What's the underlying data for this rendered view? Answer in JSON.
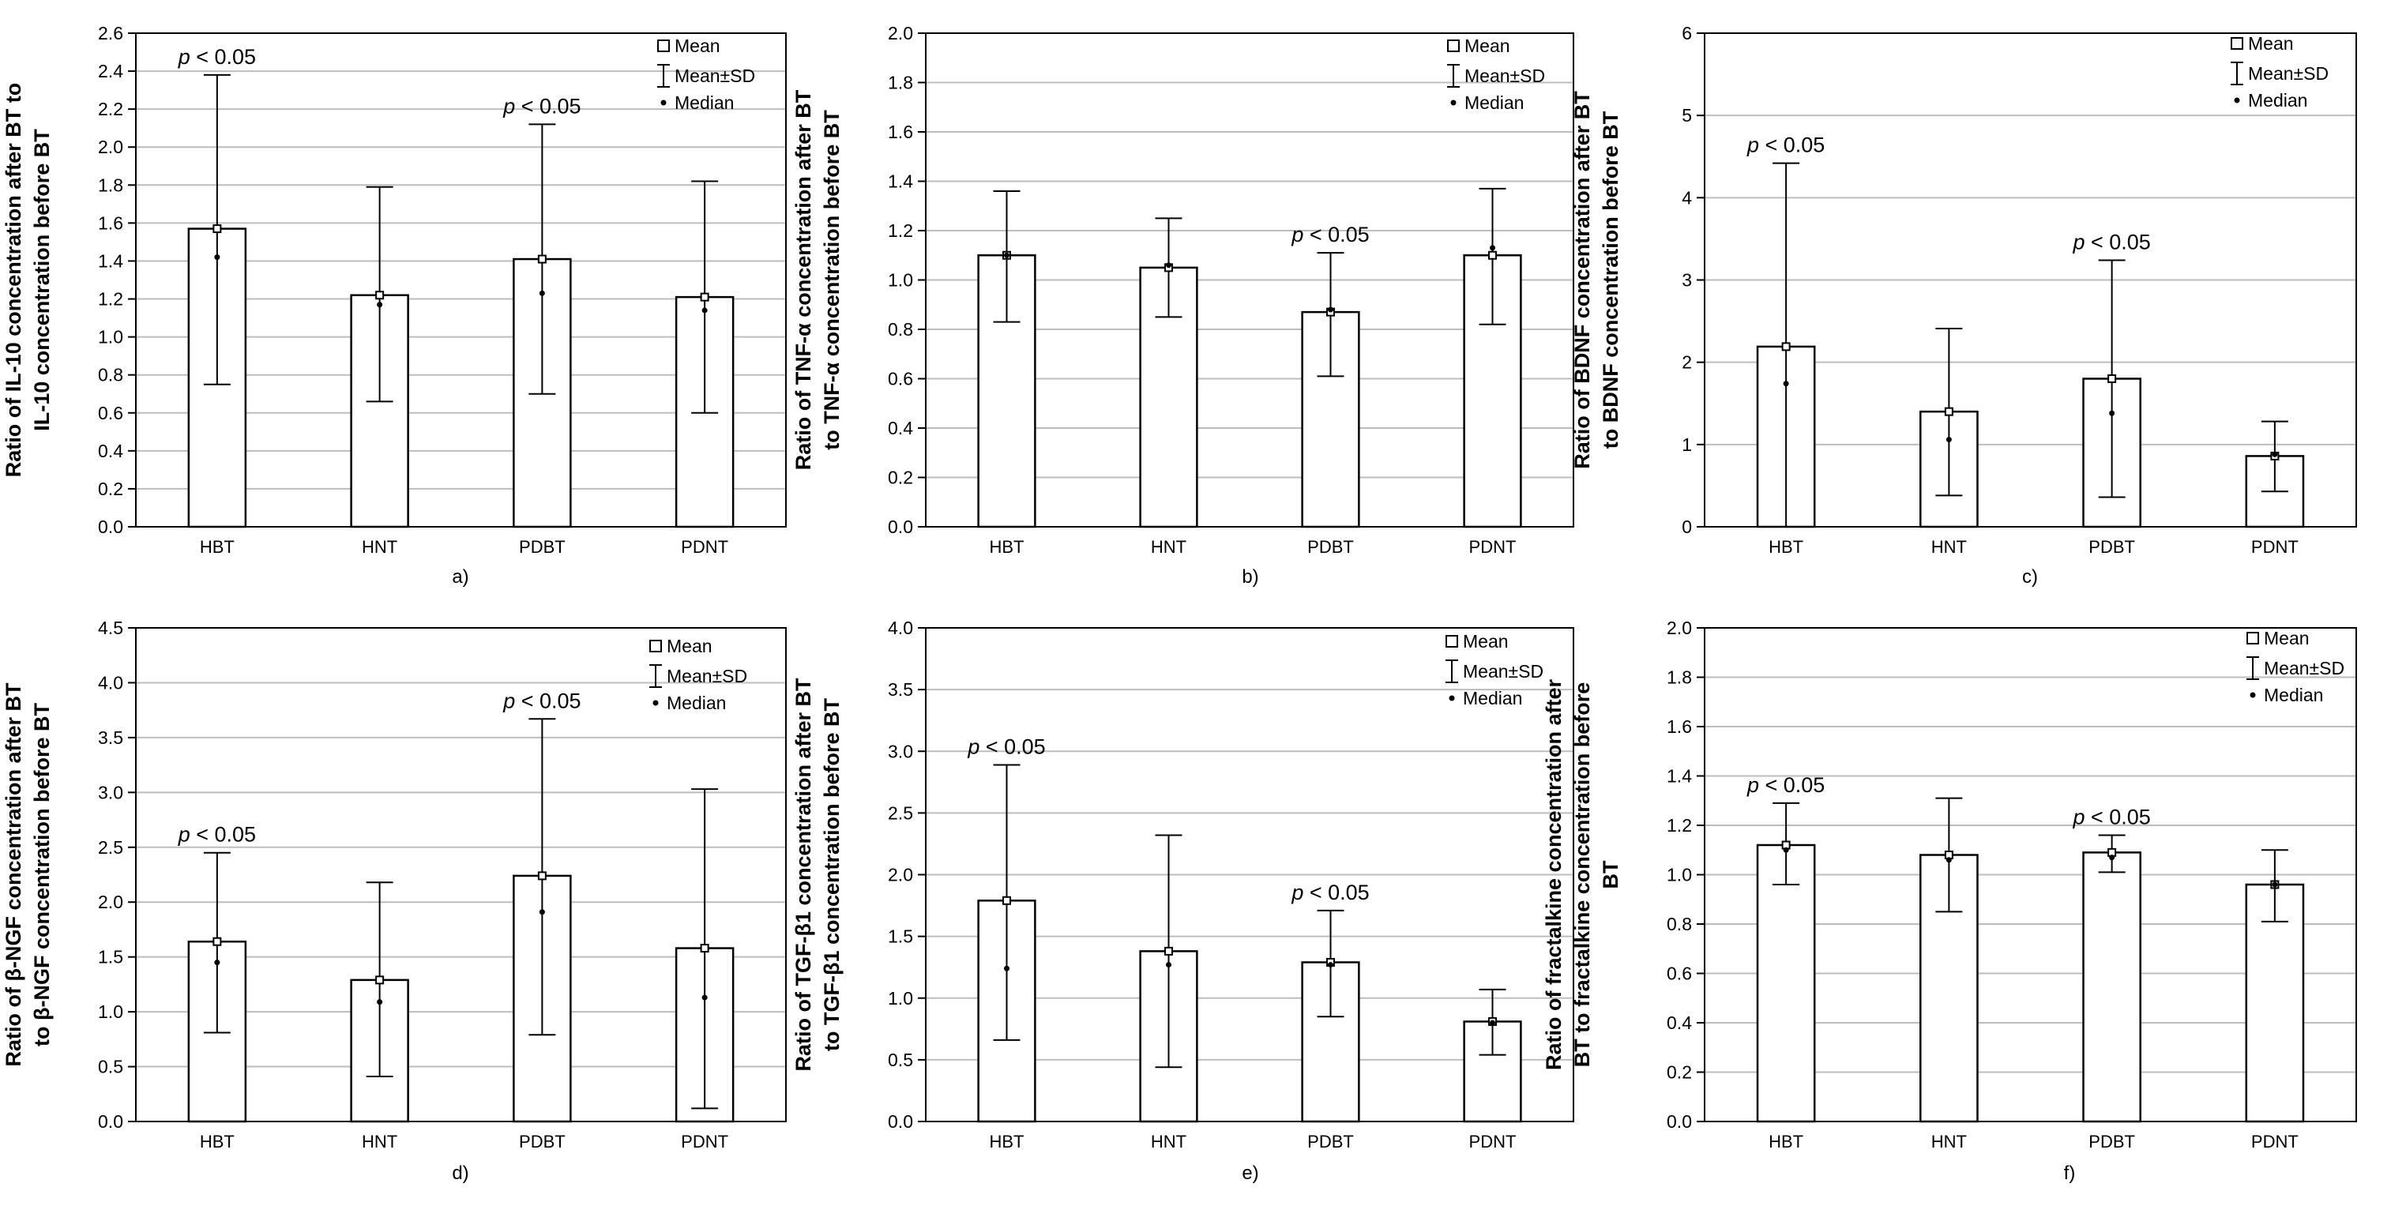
{
  "figure": {
    "categories": [
      "HBT",
      "HNT",
      "PDBT",
      "PDNT"
    ],
    "legend": {
      "mean": "Mean",
      "sd": "Mean±SD",
      "median": "Median"
    },
    "sig_label": "< 0.05",
    "sig_p": "p"
  },
  "chart_data": [
    {
      "panel": "a)",
      "type": "bar",
      "ylabel": [
        "Ratio of IL-10 concentration after BT to",
        "IL-10 concentration before BT"
      ],
      "ylim": [
        0,
        2.6
      ],
      "ystep": 0.2,
      "tick_decimals": 1,
      "categories": [
        "HBT",
        "HNT",
        "PDBT",
        "PDNT"
      ],
      "mean": [
        1.57,
        1.22,
        1.41,
        1.21
      ],
      "sd_low": [
        0.75,
        0.66,
        0.7,
        0.6
      ],
      "sd_high": [
        2.38,
        1.79,
        2.12,
        1.82
      ],
      "median": [
        1.42,
        1.17,
        1.23,
        1.14
      ],
      "significant": [
        true,
        false,
        true,
        false
      ]
    },
    {
      "panel": "b)",
      "type": "bar",
      "ylabel": [
        "Ratio of TNF-α concentration after BT",
        "to TNF-α concentration before BT"
      ],
      "ylim": [
        0,
        2.0
      ],
      "ystep": 0.2,
      "tick_decimals": 1,
      "categories": [
        "HBT",
        "HNT",
        "PDBT",
        "PDNT"
      ],
      "mean": [
        1.1,
        1.05,
        0.87,
        1.1
      ],
      "sd_low": [
        0.83,
        0.85,
        0.61,
        0.82
      ],
      "sd_high": [
        1.36,
        1.25,
        1.11,
        1.37
      ],
      "median": [
        1.1,
        1.06,
        0.88,
        1.13
      ],
      "significant": [
        false,
        false,
        true,
        false
      ]
    },
    {
      "panel": "c)",
      "type": "bar",
      "ylabel": [
        "Ratio of BDNF concentration after BT",
        "to BDNF concentration before BT"
      ],
      "ylim": [
        0,
        6
      ],
      "ystep": 1,
      "tick_decimals": 0,
      "categories": [
        "HBT",
        "HNT",
        "PDBT",
        "PDNT"
      ],
      "mean": [
        2.19,
        1.4,
        1.8,
        0.86
      ],
      "sd_low": [
        0.0,
        0.38,
        0.36,
        0.43
      ],
      "sd_high": [
        4.42,
        2.41,
        3.24,
        1.28
      ],
      "median": [
        1.74,
        1.06,
        1.38,
        0.88
      ],
      "significant": [
        true,
        false,
        true,
        false
      ]
    },
    {
      "panel": "d)",
      "type": "bar",
      "ylabel": [
        "Ratio of β-NGF concentration after BT",
        "to β-NGF concentration before BT"
      ],
      "ylim": [
        0,
        4.5
      ],
      "ystep": 0.5,
      "tick_decimals": 1,
      "categories": [
        "HBT",
        "HNT",
        "PDBT",
        "PDNT"
      ],
      "mean": [
        1.64,
        1.29,
        2.24,
        1.58
      ],
      "sd_low": [
        0.81,
        0.41,
        0.79,
        0.12
      ],
      "sd_high": [
        2.45,
        2.18,
        3.67,
        3.03
      ],
      "median": [
        1.45,
        1.09,
        1.91,
        1.13
      ],
      "significant": [
        true,
        false,
        true,
        false
      ]
    },
    {
      "panel": "e)",
      "type": "bar",
      "ylabel": [
        "Ratio of TGF-β1 concentration after BT",
        "to TGF-β1 concentration before BT"
      ],
      "ylim": [
        0,
        4.0
      ],
      "ystep": 0.5,
      "tick_decimals": 1,
      "categories": [
        "HBT",
        "HNT",
        "PDBT",
        "PDNT"
      ],
      "mean": [
        1.79,
        1.38,
        1.29,
        0.81
      ],
      "sd_low": [
        0.66,
        0.44,
        0.85,
        0.54
      ],
      "sd_high": [
        2.89,
        2.32,
        1.71,
        1.07
      ],
      "median": [
        1.24,
        1.27,
        1.27,
        0.8
      ],
      "significant": [
        true,
        false,
        true,
        false
      ]
    },
    {
      "panel": "f)",
      "type": "bar",
      "ylabel": [
        "Ratio of fractalkine concentration after",
        "BT to fractalkine concentration before",
        "BT"
      ],
      "ylim": [
        0,
        2.0
      ],
      "ystep": 0.2,
      "tick_decimals": 1,
      "categories": [
        "HBT",
        "HNT",
        "PDBT",
        "PDNT"
      ],
      "mean": [
        1.12,
        1.08,
        1.09,
        0.96
      ],
      "sd_low": [
        0.96,
        0.85,
        1.01,
        0.81
      ],
      "sd_high": [
        1.29,
        1.31,
        1.16,
        1.1
      ],
      "median": [
        1.1,
        1.06,
        1.07,
        0.96
      ],
      "significant": [
        true,
        false,
        true,
        false
      ]
    }
  ]
}
